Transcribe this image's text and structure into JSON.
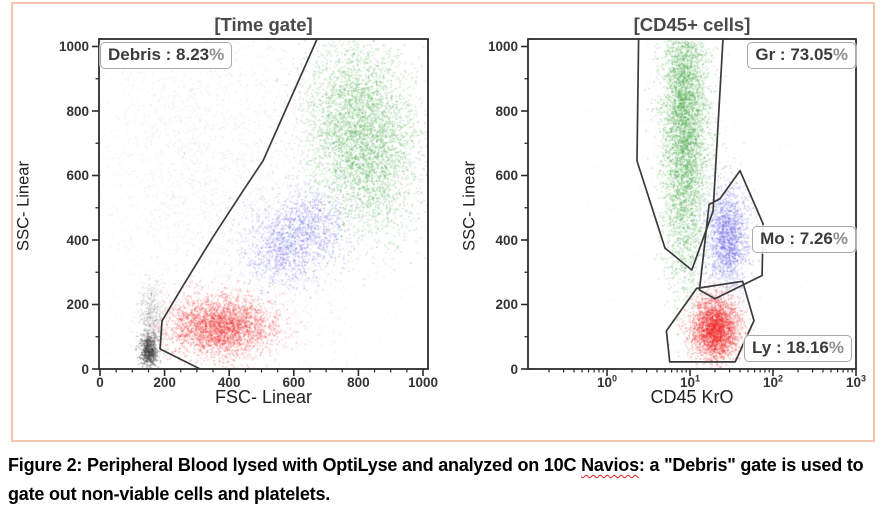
{
  "figure": {
    "caption_segments": [
      {
        "text": "Figure 2: Peripheral Blood lysed with OptiLyse and analyzed on 10C "
      },
      {
        "text": "Navios",
        "spellcheck": true
      },
      {
        "text": ": a \"Debris\" gate is used to",
        "break_after": true
      },
      {
        "text": "gate out non-viable cells and platelets."
      }
    ]
  },
  "colors": {
    "granulocytes_green": "#2d9b2d",
    "monocytes_blue": "#4a4ae0",
    "lymphocytes_red": "#ee1a1a",
    "debris_gray": "#555555",
    "gate_line": "#3a3a3a",
    "frame": "#2b2b2b",
    "cell_border_salmon": "#f2c6ac",
    "spellcheck_red": "#e21e1e"
  },
  "chart_data": [
    {
      "type": "scatter",
      "title": "[Time gate]",
      "xlabel": "FSC- Linear",
      "ylabel": "SSC- Linear",
      "x_scale": "linear",
      "xlim": [
        0,
        1000
      ],
      "ylim": [
        0,
        1000
      ],
      "x_ticks": [
        0,
        200,
        400,
        600,
        800,
        1000
      ],
      "y_ticks": [
        0,
        200,
        400,
        600,
        800,
        1000
      ],
      "grid": false,
      "gates": [
        {
          "id": "debris",
          "label": "Debris : 8.23%",
          "name": "Debris",
          "percent": 8.23,
          "closed": false,
          "polygon": [
            [
              672,
              1025
            ],
            [
              505,
              646
            ],
            [
              443,
              553
            ],
            [
              350,
              410
            ],
            [
              257,
              258
            ],
            [
              192,
              149
            ],
            [
              186,
              62
            ],
            [
              310,
              0
            ]
          ]
        }
      ],
      "clusters": [
        {
          "name": "noise-cloud",
          "color": "#8c8c8c",
          "alpha": 0.2,
          "n": 2300,
          "cx": 330,
          "cy": 650,
          "sdx": 170,
          "sdy": 265,
          "size": 1.1
        },
        {
          "name": "noise-uniform",
          "color": "#999999",
          "alpha": 0.16,
          "n": 450,
          "shape": "uniform",
          "x_range": [
            5,
            995
          ],
          "y_range": [
            5,
            995
          ],
          "size": 1.1
        },
        {
          "name": "debris-dense",
          "color": "#3f3f3f",
          "alpha": 0.5,
          "n": 650,
          "cx": 150,
          "cy": 58,
          "sdx": 13,
          "sdy": 26,
          "size": 1.2
        },
        {
          "name": "debris-mid",
          "color": "#707070",
          "alpha": 0.3,
          "n": 600,
          "cx": 158,
          "cy": 150,
          "sdx": 20,
          "sdy": 62,
          "size": 1.1
        },
        {
          "name": "granulocytes-a",
          "color": "#2d9b2d",
          "alpha": 0.3,
          "n": 2600,
          "cx": 790,
          "cy": 780,
          "sdx": 78,
          "sdy": 130,
          "size": 1.3
        },
        {
          "name": "granulocytes-b",
          "color": "#2d9b2d",
          "alpha": 0.3,
          "n": 1800,
          "cx": 845,
          "cy": 630,
          "sdx": 80,
          "sdy": 120,
          "size": 1.3
        },
        {
          "name": "granulocytes-halo",
          "color": "#2d9b2d",
          "alpha": 0.11,
          "n": 900,
          "cx": 800,
          "cy": 700,
          "sdx": 150,
          "sdy": 235,
          "size": 1.2
        },
        {
          "name": "monocytes-a",
          "color": "#4a4ae0",
          "alpha": 0.3,
          "n": 900,
          "cx": 560,
          "cy": 370,
          "sdx": 62,
          "sdy": 62,
          "size": 1.25
        },
        {
          "name": "monocytes-b",
          "color": "#4a4ae0",
          "alpha": 0.3,
          "n": 800,
          "cx": 650,
          "cy": 445,
          "sdx": 62,
          "sdy": 62,
          "size": 1.25
        },
        {
          "name": "monocytes-halo",
          "color": "#4a4ae0",
          "alpha": 0.1,
          "n": 400,
          "cx": 600,
          "cy": 400,
          "sdx": 125,
          "sdy": 120,
          "size": 1.2
        },
        {
          "name": "lymphocytes",
          "color": "#ee1a1a",
          "alpha": 0.33,
          "n": 2900,
          "cx": 372,
          "cy": 133,
          "sdx": 80,
          "sdy": 46,
          "size": 1.3
        },
        {
          "name": "lymphocytes-halo",
          "color": "#ee1a1a",
          "alpha": 0.12,
          "n": 700,
          "cx": 440,
          "cy": 160,
          "sdx": 150,
          "sdy": 70,
          "size": 1.2
        }
      ]
    },
    {
      "type": "scatter",
      "title": "[CD45+ cells]",
      "xlabel": "CD45 KrO",
      "ylabel": "SSC- Linear",
      "x_scale": "log",
      "xlim": [
        0.11,
        1000
      ],
      "ylim": [
        0,
        1000
      ],
      "x_ticks_log": [
        {
          "value": 1,
          "label_base": "10",
          "label_exp": "0"
        },
        {
          "value": 10,
          "label_base": "10",
          "label_exp": "1"
        },
        {
          "value": 100,
          "label_base": "10",
          "label_exp": "2"
        },
        {
          "value": 1000,
          "label_base": "10",
          "label_exp": "3"
        }
      ],
      "y_ticks": [
        0,
        200,
        400,
        600,
        800,
        1000
      ],
      "grid": false,
      "gates": [
        {
          "id": "gr",
          "label": "Gr : 73.05%",
          "name": "Gr",
          "percent": 73.05,
          "closed": false,
          "polygon": [
            [
              2.4,
              1025
            ],
            [
              2.3,
              645
            ],
            [
              5.0,
              375
            ],
            [
              10.5,
              307
            ],
            [
              19,
              490
            ],
            [
              25,
              1025
            ]
          ]
        },
        {
          "id": "mo",
          "label": "Mo : 7.26%",
          "name": "Mo",
          "percent": 7.26,
          "closed": true,
          "polygon": [
            [
              13,
              245
            ],
            [
              17,
              510
            ],
            [
              23,
              528
            ],
            [
              40,
              615
            ],
            [
              76,
              450
            ],
            [
              74,
              290
            ],
            [
              20,
              218
            ]
          ]
        },
        {
          "id": "ly",
          "label": "Ly : 18.16%",
          "name": "Ly",
          "percent": 18.16,
          "closed": true,
          "polygon": [
            [
              5.2,
              118
            ],
            [
              12,
              250
            ],
            [
              43,
              272
            ],
            [
              59,
              150
            ],
            [
              35,
              22
            ],
            [
              5.7,
              22
            ]
          ]
        }
      ],
      "clusters": [
        {
          "name": "noise-uniform",
          "color": "#9a9a9a",
          "alpha": 0.15,
          "n": 320,
          "shape": "uniform",
          "x_range": [
            0.35,
            450
          ],
          "y_range": [
            5,
            995
          ],
          "size": 1.1
        },
        {
          "name": "granulocytes",
          "color": "#2d9b2d",
          "alpha": 0.32,
          "n": 5200,
          "cx": 8.5,
          "sd_logx": 0.135,
          "cy": 760,
          "sdy": 235,
          "size": 1.3
        },
        {
          "name": "granulocytes-halo",
          "color": "#2d9b2d",
          "alpha": 0.1,
          "n": 800,
          "cx": 8.5,
          "sd_logx": 0.21,
          "cy": 700,
          "sdy": 265,
          "size": 1.2
        },
        {
          "name": "monocytes",
          "color": "#4a4ae0",
          "alpha": 0.32,
          "n": 1700,
          "cx": 28,
          "sd_logx": 0.125,
          "cy": 410,
          "sdy": 80,
          "size": 1.25
        },
        {
          "name": "monocytes-halo",
          "color": "#4a4ae0",
          "alpha": 0.1,
          "n": 350,
          "cx": 28,
          "sd_logx": 0.2,
          "cy": 400,
          "sdy": 115,
          "size": 1.2
        },
        {
          "name": "lymphocytes",
          "color": "#ee1a1a",
          "alpha": 0.35,
          "n": 2700,
          "cx": 20,
          "sd_logx": 0.14,
          "cy": 130,
          "sdy": 48,
          "size": 1.3
        },
        {
          "name": "lymphocytes-halo",
          "color": "#ee1a1a",
          "alpha": 0.12,
          "n": 550,
          "cx": 20,
          "sd_logx": 0.2,
          "cy": 140,
          "sdy": 70,
          "size": 1.2
        }
      ]
    }
  ]
}
